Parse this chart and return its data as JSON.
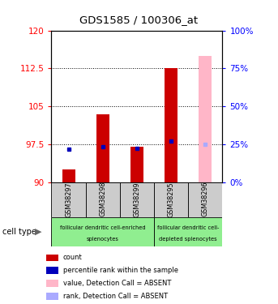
{
  "title": "GDS1585 / 100306_at",
  "samples": [
    "GSM38297",
    "GSM38298",
    "GSM38299",
    "GSM38295",
    "GSM38296"
  ],
  "ylim_left": [
    90,
    120
  ],
  "ylim_right": [
    0,
    100
  ],
  "yticks_left": [
    90,
    97.5,
    105,
    112.5,
    120
  ],
  "yticks_right": [
    0,
    25,
    50,
    75,
    100
  ],
  "count_values": [
    92.5,
    103.5,
    97.0,
    112.5,
    null
  ],
  "rank_values": [
    96.5,
    97.1,
    96.8,
    98.2,
    null
  ],
  "absent_value": [
    null,
    null,
    null,
    null,
    115.0
  ],
  "absent_rank": [
    null,
    null,
    null,
    null,
    97.5
  ],
  "bar_color_red": "#cc0000",
  "bar_color_pink": "#ffb6c8",
  "dot_color_blue": "#0000bb",
  "dot_color_lightblue": "#aaaaff",
  "sample_bg_color": "#cccccc",
  "group1_color": "#90ee90",
  "group1_label_line1": "follicular dendritic cell-enriched",
  "group1_label_line2": "splenocytes",
  "group2_label_line1": "follicular dendritic cell-",
  "group2_label_line2": "depleted splenocytes",
  "legend_items": [
    {
      "color": "#cc0000",
      "label": "count"
    },
    {
      "color": "#0000bb",
      "label": "percentile rank within the sample"
    },
    {
      "color": "#ffb6c8",
      "label": "value, Detection Call = ABSENT"
    },
    {
      "color": "#aaaaff",
      "label": "rank, Detection Call = ABSENT"
    }
  ]
}
